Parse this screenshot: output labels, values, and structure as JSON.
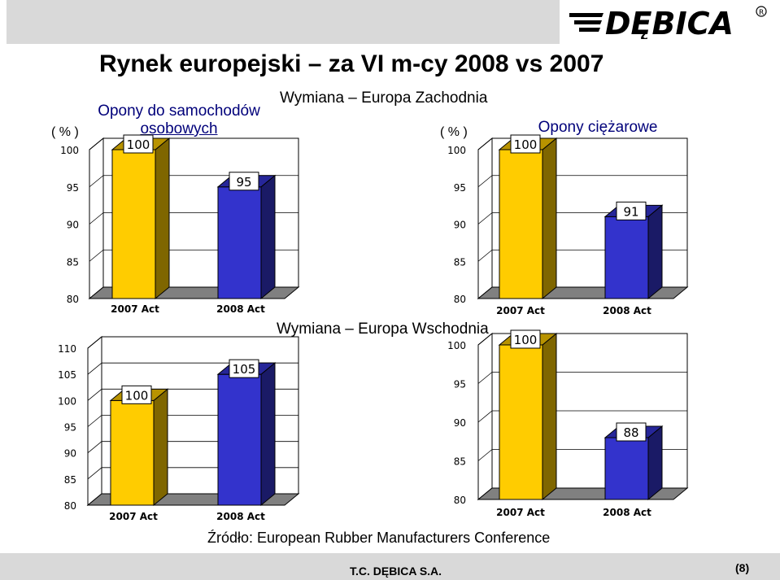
{
  "page": {
    "title": "Rynek europejski – za VI m-cy 2008 vs 2007",
    "logo_text": "DĘBICA",
    "unit_left": "( % )",
    "unit_right": "( % )",
    "category_left": "Opony do samochodów osobowych",
    "category_left_line1": "Opony do samochodów",
    "category_left_line2": "osobowych",
    "category_right": "Opony ciężarowe",
    "region_west": "Wymiana – Europa Zachodnia",
    "region_east": "Wymiana – Europa Wschodnia",
    "source": "Źródło: European Rubber Manufacturers Conference",
    "company": "T.C. DĘBICA S.A.",
    "page_number": "(8)"
  },
  "colors": {
    "bar_2007": "#ffcc00",
    "bar_2007_side": "#7f6600",
    "bar_2007_top": "#b89300",
    "bar_2008": "#3333cc",
    "bar_2008_side": "#1a1a66",
    "bar_2008_top": "#262699",
    "wall": "#ffffff",
    "floor": "#808080"
  },
  "chart_data": [
    {
      "type": "bar",
      "region": "Wymiana – Europa Zachodnia",
      "segment": "Opony do samochodów osobowych",
      "categories": [
        "2007 Act",
        "2008 Act"
      ],
      "values": [
        100,
        95
      ],
      "data_labels": [
        "100",
        "95"
      ],
      "ylim": [
        80,
        100
      ],
      "yticks": [
        100,
        95,
        90,
        85,
        80
      ],
      "ytick_labels": [
        "100",
        "95",
        "90",
        "85",
        "80"
      ]
    },
    {
      "type": "bar",
      "region": "Wymiana – Europa Zachodnia",
      "segment": "Opony ciężarowe",
      "categories": [
        "2007 Act",
        "2008 Act"
      ],
      "values": [
        100,
        91
      ],
      "data_labels": [
        "100",
        "91"
      ],
      "ylim": [
        80,
        100
      ],
      "yticks": [
        100,
        95,
        90,
        85,
        80
      ],
      "ytick_labels": [
        "100",
        "95",
        "90",
        "85",
        "80"
      ]
    },
    {
      "type": "bar",
      "region": "Wymiana – Europa Wschodnia",
      "segment": "Opony do samochodów osobowych",
      "categories": [
        "2007 Act",
        "2008 Act"
      ],
      "values": [
        100,
        105
      ],
      "data_labels": [
        "100",
        "105"
      ],
      "ylim": [
        80,
        110
      ],
      "yticks": [
        110,
        105,
        100,
        95,
        90,
        85,
        80
      ],
      "ytick_labels": [
        "110",
        "105",
        "100",
        "95",
        "90",
        "85",
        "80"
      ]
    },
    {
      "type": "bar",
      "region": "Wymiana – Europa Wschodnia",
      "segment": "Opony ciężarowe",
      "categories": [
        "2007 Act",
        "2008 Act"
      ],
      "values": [
        100,
        88
      ],
      "data_labels": [
        "100",
        "88"
      ],
      "ylim": [
        80,
        100
      ],
      "yticks": [
        100,
        95,
        90,
        85,
        80
      ],
      "ytick_labels": [
        "100",
        "95",
        "90",
        "85",
        "80"
      ]
    }
  ]
}
